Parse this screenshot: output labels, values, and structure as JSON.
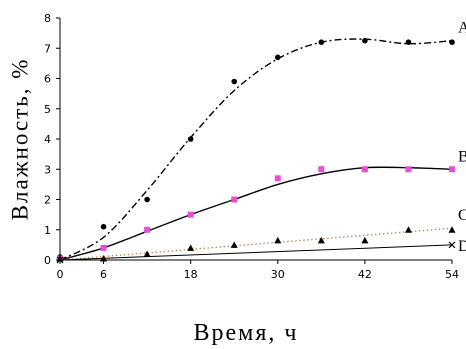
{
  "chart_data": {
    "type": "line",
    "xlabel": "Время, ч",
    "ylabel": "Влажность, %",
    "xlim": [
      0,
      54
    ],
    "ylim": [
      0,
      8
    ],
    "xticks": [
      0,
      6,
      18,
      30,
      42,
      54
    ],
    "xtick_labels": [
      "0",
      "6",
      "18",
      "30",
      "42",
      "54"
    ],
    "yticks": [
      0,
      1,
      2,
      3,
      4,
      5,
      6,
      7,
      8
    ],
    "ytick_labels": [
      "0",
      "1",
      "2",
      "3",
      "4",
      "5",
      "6",
      "7",
      "8"
    ],
    "grid": false,
    "series": [
      {
        "name": "A",
        "color": "#000000",
        "marker": "circle",
        "line_style": "dash-dot",
        "x": [
          0,
          6,
          12,
          18,
          24,
          30,
          36,
          42,
          48,
          54
        ],
        "y": [
          0.1,
          1.1,
          2.0,
          4.0,
          5.9,
          6.7,
          7.2,
          7.25,
          7.2,
          7.2
        ],
        "fit": [
          [
            0,
            0
          ],
          [
            6,
            0.75
          ],
          [
            12,
            2.3
          ],
          [
            18,
            4.05
          ],
          [
            24,
            5.6
          ],
          [
            30,
            6.65
          ],
          [
            36,
            7.2
          ],
          [
            42,
            7.3
          ],
          [
            48,
            7.15
          ],
          [
            54,
            7.25
          ]
        ]
      },
      {
        "name": "B",
        "color": "#000000",
        "marker_color": "#e84cdc",
        "marker": "square",
        "line_style": "solid",
        "x": [
          0,
          6,
          12,
          18,
          24,
          30,
          36,
          42,
          48,
          54
        ],
        "y": [
          0.05,
          0.4,
          1.0,
          1.5,
          2.0,
          2.7,
          3.0,
          3.0,
          3.0,
          3.0
        ],
        "fit": [
          [
            0,
            0
          ],
          [
            6,
            0.4
          ],
          [
            12,
            0.95
          ],
          [
            18,
            1.5
          ],
          [
            24,
            2.0
          ],
          [
            30,
            2.5
          ],
          [
            36,
            2.85
          ],
          [
            42,
            3.05
          ],
          [
            48,
            3.05
          ],
          [
            54,
            3.0
          ]
        ]
      },
      {
        "name": "C",
        "color": "#c48a55",
        "marker_color": "#000000",
        "marker": "triangle",
        "line_style": "dotted",
        "x": [
          0,
          6,
          12,
          18,
          24,
          30,
          36,
          42,
          48,
          54
        ],
        "y": [
          0.05,
          0.05,
          0.2,
          0.4,
          0.5,
          0.65,
          0.65,
          0.65,
          1.0,
          1.0
        ],
        "fit": [
          [
            0,
            0
          ],
          [
            54,
            1.05
          ]
        ]
      },
      {
        "name": "D",
        "color": "#000000",
        "marker_color": "#000000",
        "marker": "cross",
        "line_style": "solid-thin",
        "x": [
          0,
          54
        ],
        "y": [
          0.0,
          0.5
        ],
        "fit": [
          [
            0,
            0
          ],
          [
            54,
            0.5
          ]
        ]
      }
    ]
  }
}
